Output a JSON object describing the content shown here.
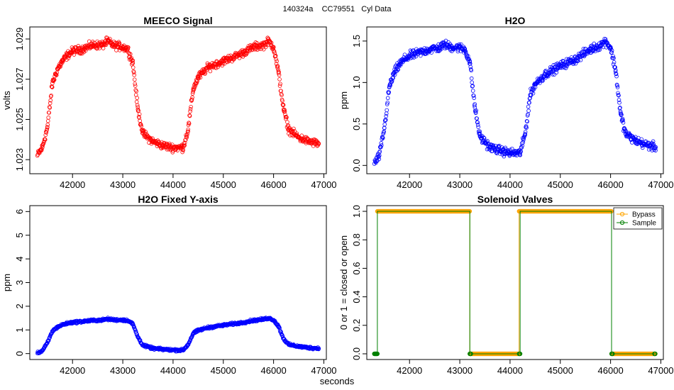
{
  "figure": {
    "suptitle": "140324a    CC79551   Cyl Data",
    "shared_xlabel": "seconds"
  },
  "colors": {
    "meeco": "#ff0000",
    "h2o": "#0000ff",
    "bypass": "#ffa500",
    "sample": "#008000"
  },
  "chart_data": [
    {
      "id": "meeco",
      "type": "scatter",
      "title": "MEECO Signal",
      "xlabel": "",
      "ylabel": "volts",
      "xlim": [
        41150,
        47050
      ],
      "ylim": [
        1.0223,
        1.0296
      ],
      "xticks": [
        42000,
        43000,
        44000,
        45000,
        46000,
        47000
      ],
      "yticks": [
        1.023,
        1.025,
        1.027,
        1.029
      ],
      "ytick_labels": [
        "1.023",
        "1.025",
        "1.027",
        "1.029"
      ],
      "color_key": "meeco",
      "series": [
        {
          "name": "MEECO Signal",
          "x": [
            41300,
            41400,
            41500,
            41600,
            41700,
            41800,
            41900,
            42000,
            42200,
            42400,
            42600,
            42700,
            42800,
            43000,
            43100,
            43200,
            43300,
            43400,
            43600,
            43800,
            44000,
            44200,
            44300,
            44400,
            44500,
            44700,
            45000,
            45300,
            45600,
            45800,
            45900,
            46000,
            46100,
            46200,
            46300,
            46500,
            46700,
            46900
          ],
          "y": [
            1.0232,
            1.0236,
            1.0246,
            1.0268,
            1.0275,
            1.0279,
            1.0282,
            1.0284,
            1.0285,
            1.0287,
            1.0287,
            1.0289,
            1.0287,
            1.0286,
            1.0285,
            1.0278,
            1.0255,
            1.0243,
            1.0239,
            1.0237,
            1.0236,
            1.0236,
            1.0245,
            1.0265,
            1.0271,
            1.0276,
            1.0279,
            1.0282,
            1.0286,
            1.0287,
            1.0289,
            1.0286,
            1.0273,
            1.0255,
            1.0245,
            1.0241,
            1.0239,
            1.0238
          ]
        }
      ]
    },
    {
      "id": "h2o",
      "type": "scatter",
      "title": "H2O",
      "xlabel": "",
      "ylabel": "ppm",
      "xlim": [
        41150,
        47050
      ],
      "ylim": [
        -0.1,
        1.67
      ],
      "xticks": [
        42000,
        43000,
        44000,
        45000,
        46000,
        47000
      ],
      "yticks": [
        0.0,
        0.5,
        1.0,
        1.5
      ],
      "ytick_labels": [
        "0.0",
        "0.5",
        "1.0",
        "1.5"
      ],
      "color_key": "h2o",
      "series": [
        {
          "name": "H2O",
          "x": [
            41300,
            41400,
            41500,
            41600,
            41700,
            41800,
            41900,
            42000,
            42200,
            42400,
            42600,
            42700,
            42800,
            43000,
            43100,
            43200,
            43300,
            43400,
            43600,
            43800,
            44000,
            44200,
            44300,
            44400,
            44500,
            44700,
            45000,
            45300,
            45600,
            45800,
            45900,
            46000,
            46100,
            46200,
            46300,
            46500,
            46700,
            46900
          ],
          "y": [
            0.02,
            0.12,
            0.45,
            0.95,
            1.12,
            1.22,
            1.28,
            1.32,
            1.36,
            1.4,
            1.42,
            1.46,
            1.43,
            1.42,
            1.4,
            1.25,
            0.7,
            0.35,
            0.22,
            0.18,
            0.15,
            0.15,
            0.38,
            0.85,
            0.98,
            1.1,
            1.2,
            1.28,
            1.4,
            1.45,
            1.5,
            1.42,
            1.15,
            0.62,
            0.38,
            0.3,
            0.25,
            0.22
          ]
        }
      ]
    },
    {
      "id": "h2o-fixed",
      "type": "scatter",
      "title": "H2O Fixed Y-axis",
      "xlabel": "",
      "ylabel": "ppm",
      "xlim": [
        41150,
        47050
      ],
      "ylim": [
        -0.25,
        6.25
      ],
      "xticks": [
        42000,
        43000,
        44000,
        45000,
        46000,
        47000
      ],
      "yticks": [
        0,
        1,
        2,
        3,
        4,
        5,
        6
      ],
      "ytick_labels": [
        "0",
        "1",
        "2",
        "3",
        "4",
        "5",
        "6"
      ],
      "color_key": "h2o",
      "series": [
        {
          "name": "H2O",
          "x": [
            41300,
            41400,
            41500,
            41600,
            41700,
            41800,
            41900,
            42000,
            42200,
            42400,
            42600,
            42700,
            42800,
            43000,
            43100,
            43200,
            43300,
            43400,
            43600,
            43800,
            44000,
            44200,
            44300,
            44400,
            44500,
            44700,
            45000,
            45300,
            45600,
            45800,
            45900,
            46000,
            46100,
            46200,
            46300,
            46500,
            46700,
            46900
          ],
          "y": [
            0.02,
            0.12,
            0.45,
            0.95,
            1.12,
            1.22,
            1.28,
            1.32,
            1.36,
            1.4,
            1.42,
            1.46,
            1.43,
            1.42,
            1.4,
            1.25,
            0.7,
            0.35,
            0.22,
            0.18,
            0.15,
            0.15,
            0.38,
            0.85,
            0.98,
            1.1,
            1.2,
            1.28,
            1.4,
            1.45,
            1.5,
            1.42,
            1.15,
            0.62,
            0.38,
            0.3,
            0.25,
            0.22
          ]
        }
      ]
    },
    {
      "id": "valves",
      "type": "line",
      "title": "Solenoid Valves",
      "xlabel": "",
      "ylabel": "0 or 1 = closed or open",
      "xlim": [
        41150,
        47050
      ],
      "ylim": [
        -0.04,
        1.04
      ],
      "xticks": [
        42000,
        43000,
        44000,
        45000,
        46000,
        47000
      ],
      "yticks": [
        0.0,
        0.2,
        0.4,
        0.6,
        0.8,
        1.0
      ],
      "ytick_labels": [
        "0.0",
        "0.2",
        "0.4",
        "0.6",
        "0.8",
        "1.0"
      ],
      "legend": {
        "position": "top-right",
        "entries": [
          "Bypass",
          "Sample"
        ]
      },
      "series": [
        {
          "name": "Bypass",
          "color_key": "bypass",
          "segments": [
            {
              "x0": 41360,
              "x1": 43200,
              "y": 1
            },
            {
              "x0": 43200,
              "x1": 44180,
              "y": 0
            },
            {
              "x0": 44180,
              "x1": 46020,
              "y": 1
            },
            {
              "x0": 46020,
              "x1": 46890,
              "y": 0
            }
          ]
        },
        {
          "name": "Sample",
          "color_key": "sample",
          "segments": [
            {
              "x0": 41300,
              "x1": 41360,
              "y": 0
            },
            {
              "x0": 41360,
              "x1": 43200,
              "y": 1
            },
            {
              "x0": 43200,
              "x1": 44200,
              "y": 0
            },
            {
              "x0": 44200,
              "x1": 46020,
              "y": 1
            },
            {
              "x0": 46020,
              "x1": 46890,
              "y": 0
            }
          ]
        }
      ]
    }
  ]
}
